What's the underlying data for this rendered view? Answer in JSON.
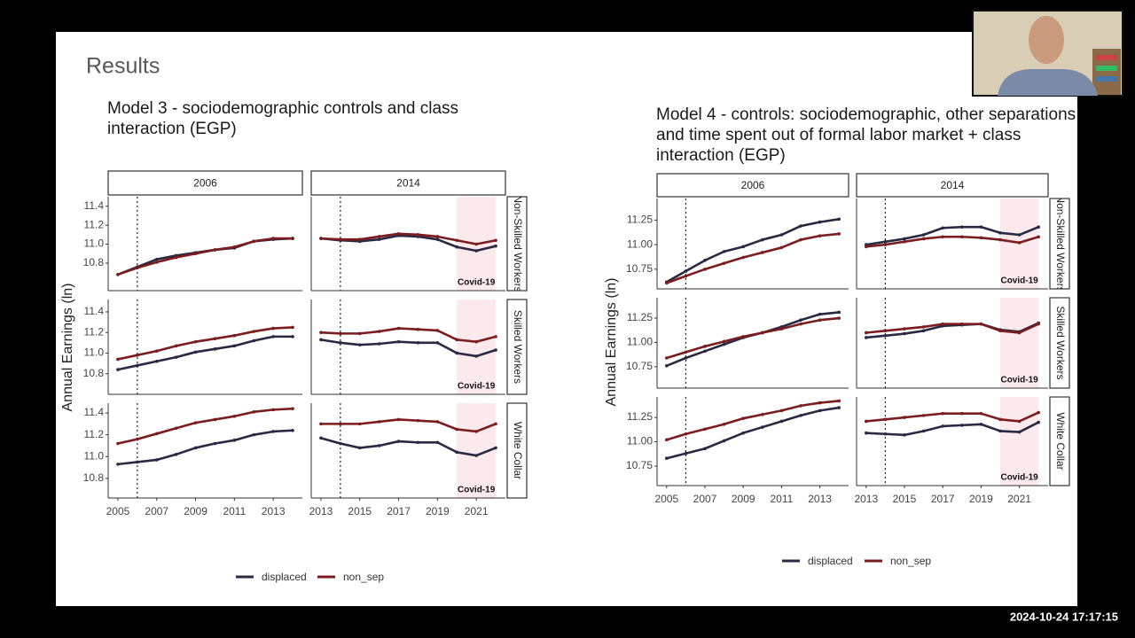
{
  "slide": {
    "title": "Results"
  },
  "timestamp": "2024-10-24  17:17:15",
  "chart_data": [
    {
      "type": "line",
      "title": "Model 3 - sociodemographic controls and class interaction (EGP)",
      "ylabel": "Annual Earnings (ln)",
      "annotation": "Covid-19",
      "series": [
        {
          "name": "displaced",
          "color": "#2a2942"
        },
        {
          "name": "non_sep",
          "color": "#7b1d1f"
        }
      ],
      "columns": [
        {
          "label": "2006",
          "x": [
            2005,
            2006,
            2007,
            2008,
            2009,
            2010,
            2011,
            2012,
            2013,
            2014
          ],
          "xlim": [
            2004.5,
            2014.5
          ],
          "xticks": [
            2005,
            2007,
            2009,
            2011,
            2013
          ],
          "vline": 2006
        },
        {
          "label": "2014",
          "x": [
            2013,
            2014,
            2015,
            2016,
            2017,
            2018,
            2019,
            2020,
            2021,
            2022
          ],
          "xlim": [
            2012.5,
            2022.5
          ],
          "xticks": [
            2013,
            2015,
            2017,
            2019,
            2021
          ],
          "vline": 2014,
          "shade": [
            2020,
            2022
          ]
        }
      ],
      "rows": [
        {
          "label": "Non-Skilled Workers",
          "ylim": [
            10.51,
            11.5
          ],
          "yticks": [
            10.8,
            {
              "value": 11,
              "label": "11.0"
            },
            11.2,
            11.4
          ],
          "values": [
            [
              [
                10.68,
                10.76,
                10.84,
                10.88,
                10.91,
                10.94,
                10.96,
                11.03,
                11.05,
                11.06
              ],
              [
                10.68,
                10.75,
                10.81,
                10.86,
                10.9,
                10.94,
                10.97,
                11.03,
                11.06,
                11.06
              ]
            ],
            [
              [
                11.06,
                11.04,
                11.03,
                11.05,
                11.09,
                11.08,
                11.05,
                10.97,
                10.93,
                10.98
              ],
              [
                11.06,
                11.05,
                11.05,
                11.08,
                11.11,
                11.1,
                11.08,
                11.04,
                11.0,
                11.04
              ]
            ]
          ]
        },
        {
          "label": "Skilled Workers",
          "ylim": [
            10.6,
            11.52
          ],
          "yticks": [
            10.8,
            {
              "value": 11,
              "label": "11.0"
            },
            11.2,
            11.4
          ],
          "values": [
            [
              [
                10.84,
                10.88,
                10.92,
                10.96,
                11.01,
                11.04,
                11.07,
                11.12,
                11.16,
                11.16
              ],
              [
                10.94,
                10.98,
                11.02,
                11.07,
                11.11,
                11.14,
                11.17,
                11.21,
                11.24,
                11.25
              ]
            ],
            [
              [
                11.13,
                11.1,
                11.08,
                11.09,
                11.11,
                11.1,
                11.1,
                11.0,
                10.97,
                11.03
              ],
              [
                11.2,
                11.19,
                11.19,
                11.21,
                11.24,
                11.23,
                11.22,
                11.13,
                11.11,
                11.16
              ]
            ]
          ]
        },
        {
          "label": "White Collar",
          "ylim": [
            10.62,
            11.49
          ],
          "yticks": [
            10.8,
            {
              "value": 11,
              "label": "11.0"
            },
            11.2,
            11.4
          ],
          "values": [
            [
              [
                10.93,
                10.95,
                10.97,
                11.02,
                11.08,
                11.12,
                11.15,
                11.2,
                11.23,
                11.24
              ],
              [
                11.12,
                11.16,
                11.21,
                11.26,
                11.31,
                11.34,
                11.37,
                11.41,
                11.43,
                11.44
              ]
            ],
            [
              [
                11.17,
                11.12,
                11.08,
                11.1,
                11.14,
                11.13,
                11.13,
                11.04,
                11.01,
                11.08
              ],
              [
                11.3,
                11.3,
                11.3,
                11.32,
                11.34,
                11.33,
                11.32,
                11.25,
                11.23,
                11.3
              ]
            ]
          ]
        }
      ]
    },
    {
      "type": "line",
      "title": "Model 4 - controls: sociodemographic, other separations and time spent out of formal labor market + class interaction (EGP)",
      "ylabel": "Annual Earnings (ln)",
      "annotation": "Covid-19",
      "series": [
        {
          "name": "displaced",
          "color": "#2a2942"
        },
        {
          "name": "non_sep",
          "color": "#7b1d1f"
        }
      ],
      "columns": [
        {
          "label": "2006",
          "x": [
            2005,
            2006,
            2007,
            2008,
            2009,
            2010,
            2011,
            2012,
            2013,
            2014
          ],
          "xlim": [
            2004.5,
            2014.5
          ],
          "xticks": [
            2005,
            2007,
            2009,
            2011,
            2013
          ],
          "vline": 2006
        },
        {
          "label": "2014",
          "x": [
            2013,
            2014,
            2015,
            2016,
            2017,
            2018,
            2019,
            2020,
            2021,
            2022
          ],
          "xlim": [
            2012.5,
            2022.5
          ],
          "xticks": [
            2013,
            2015,
            2017,
            2019,
            2021
          ],
          "vline": 2014,
          "shade": [
            2020,
            2022
          ]
        }
      ],
      "rows": [
        {
          "label": "Non-Skilled Workers",
          "ylim": [
            10.55,
            11.47
          ],
          "yticks": [
            10.75,
            {
              "value": 11,
              "label": "11.00"
            },
            11.25
          ],
          "values": [
            [
              [
                10.62,
                10.73,
                10.84,
                10.93,
                10.98,
                11.05,
                11.1,
                11.19,
                11.23,
                11.26
              ],
              [
                10.61,
                10.68,
                10.75,
                10.81,
                10.87,
                10.92,
                10.97,
                11.05,
                11.09,
                11.11
              ]
            ],
            [
              [
                11.0,
                11.03,
                11.06,
                11.1,
                11.17,
                11.18,
                11.18,
                11.12,
                11.1,
                11.18
              ],
              [
                10.98,
                11.0,
                11.03,
                11.06,
                11.08,
                11.08,
                11.07,
                11.05,
                11.02,
                11.08
              ]
            ]
          ]
        },
        {
          "label": "Skilled Workers",
          "ylim": [
            10.53,
            11.46
          ],
          "yticks": [
            10.75,
            {
              "value": 11,
              "label": "11.00"
            },
            11.25
          ],
          "values": [
            [
              [
                10.76,
                10.84,
                10.91,
                10.98,
                11.05,
                11.1,
                11.16,
                11.23,
                11.29,
                11.31
              ],
              [
                10.84,
                10.9,
                10.96,
                11.01,
                11.06,
                11.1,
                11.14,
                11.19,
                11.23,
                11.25
              ]
            ],
            [
              [
                11.05,
                11.07,
                11.09,
                11.12,
                11.17,
                11.18,
                11.19,
                11.13,
                11.11,
                11.2
              ],
              [
                11.1,
                11.12,
                11.14,
                11.16,
                11.19,
                11.19,
                11.19,
                11.12,
                11.1,
                11.19
              ]
            ]
          ]
        },
        {
          "label": "White Collar",
          "ylim": [
            10.55,
            11.46
          ],
          "yticks": [
            10.75,
            {
              "value": 11,
              "label": "11.00"
            },
            11.25
          ],
          "values": [
            [
              [
                10.83,
                10.88,
                10.93,
                11.01,
                11.09,
                11.15,
                11.21,
                11.27,
                11.32,
                11.35
              ],
              [
                11.02,
                11.08,
                11.13,
                11.18,
                11.24,
                11.28,
                11.32,
                11.37,
                11.4,
                11.42
              ]
            ],
            [
              [
                11.09,
                11.08,
                11.07,
                11.11,
                11.16,
                11.17,
                11.18,
                11.11,
                11.1,
                11.2
              ],
              [
                11.21,
                11.23,
                11.25,
                11.27,
                11.29,
                11.29,
                11.29,
                11.23,
                11.21,
                11.3
              ]
            ]
          ]
        }
      ]
    }
  ]
}
